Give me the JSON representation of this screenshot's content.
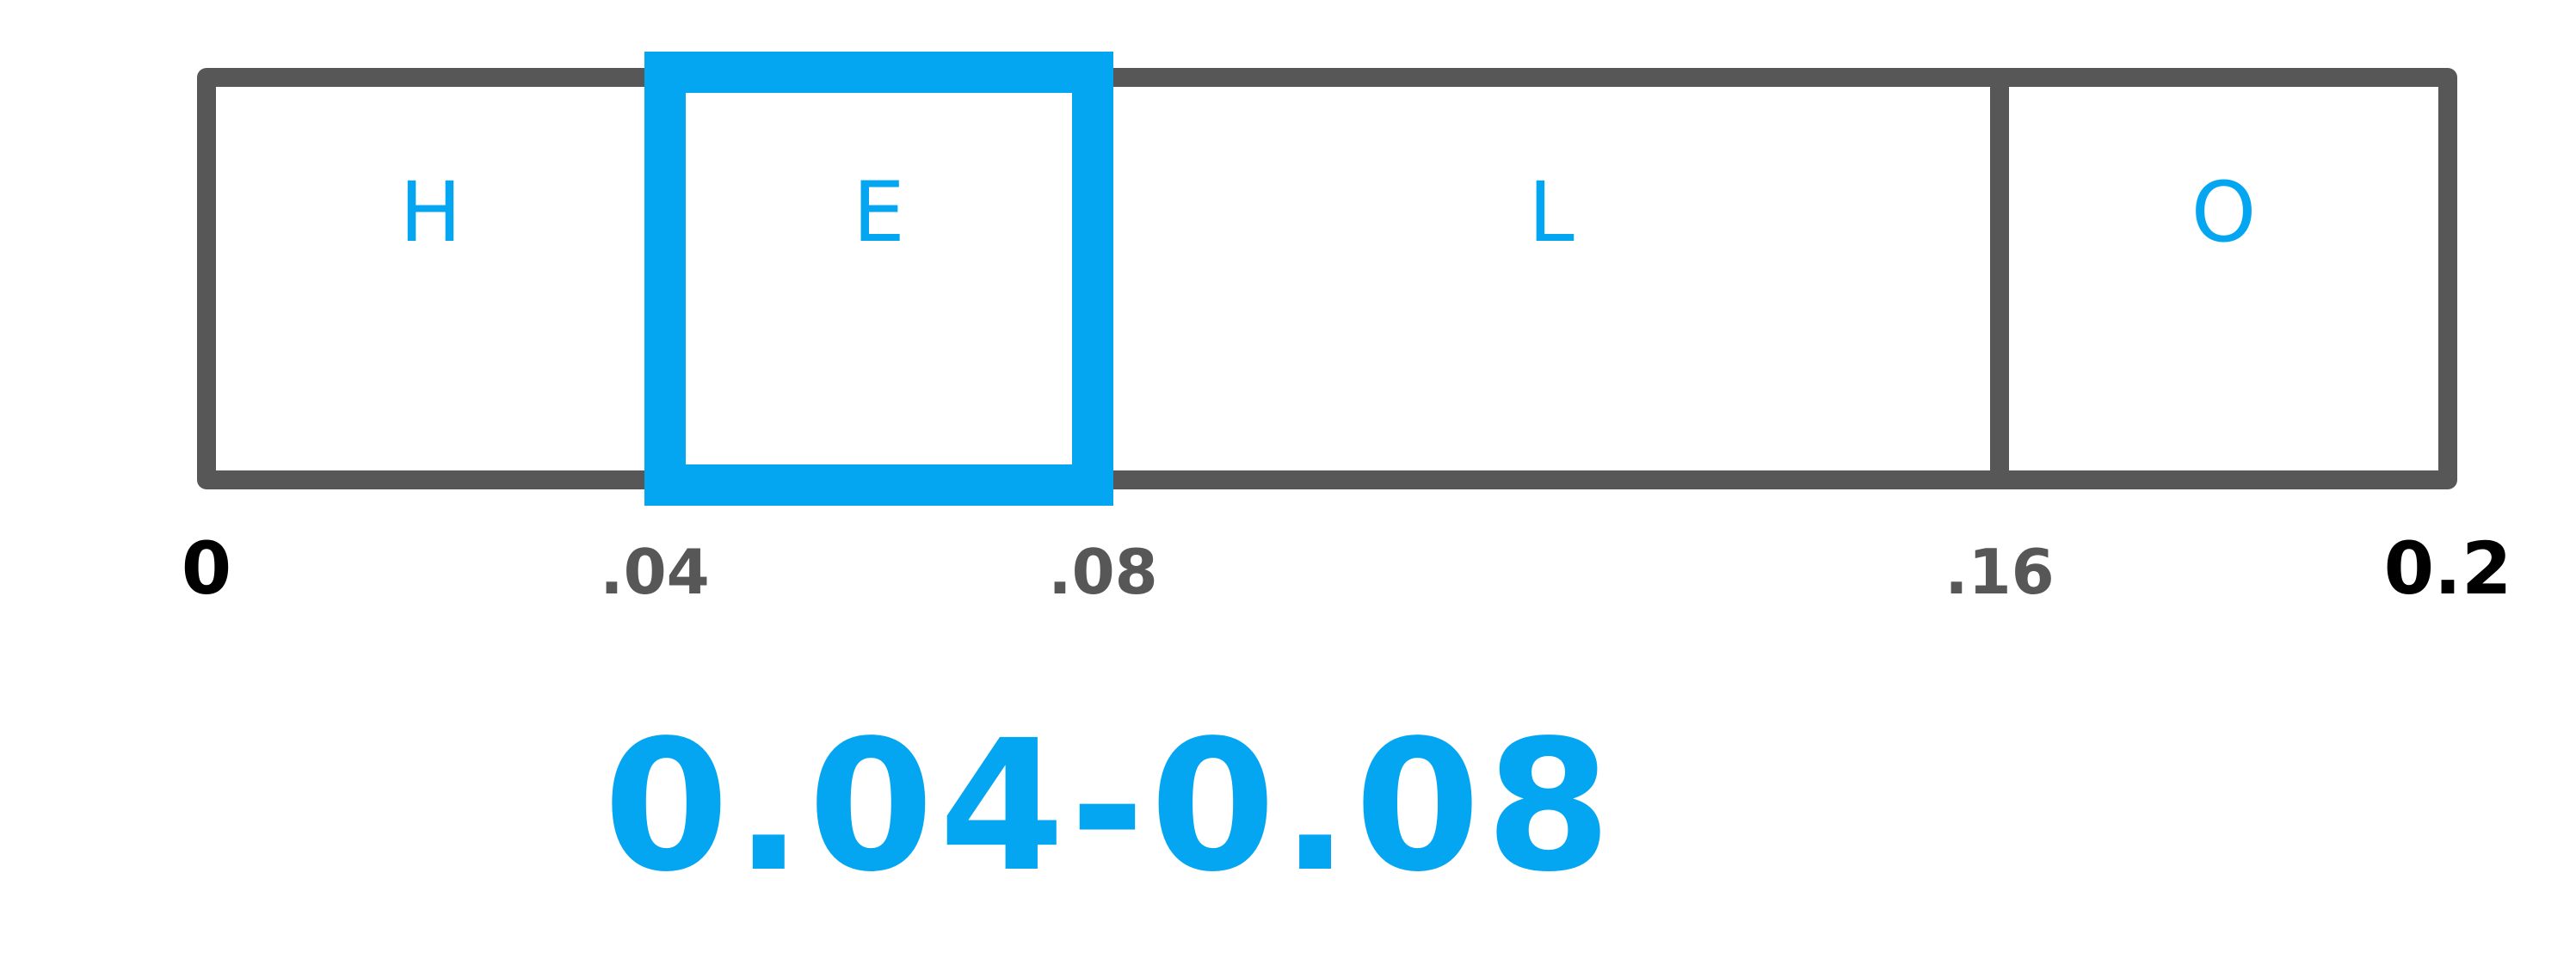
{
  "colors": {
    "bar_stroke": "#575757",
    "accent": "#04a6f2",
    "endpoint_label": "#000000",
    "inner_label": "#575757"
  },
  "scale": {
    "min": 0,
    "max": 0.2
  },
  "segments": [
    {
      "letter": "H",
      "start": 0,
      "end": 0.04,
      "highlighted": false
    },
    {
      "letter": "E",
      "start": 0.04,
      "end": 0.08,
      "highlighted": true
    },
    {
      "letter": "L",
      "start": 0.08,
      "end": 0.16,
      "highlighted": false
    },
    {
      "letter": "O",
      "start": 0.16,
      "end": 0.2,
      "highlighted": false
    }
  ],
  "ticks": [
    {
      "value": 0,
      "label": "0",
      "style": "endpoint"
    },
    {
      "value": 0.04,
      "label": ".04",
      "style": "inner"
    },
    {
      "value": 0.08,
      "label": ".08",
      "style": "inner"
    },
    {
      "value": 0.16,
      "label": ".16",
      "style": "inner"
    },
    {
      "value": 0.2,
      "label": "0.2",
      "style": "endpoint"
    }
  ],
  "result": {
    "label": "0.04-0.08"
  }
}
